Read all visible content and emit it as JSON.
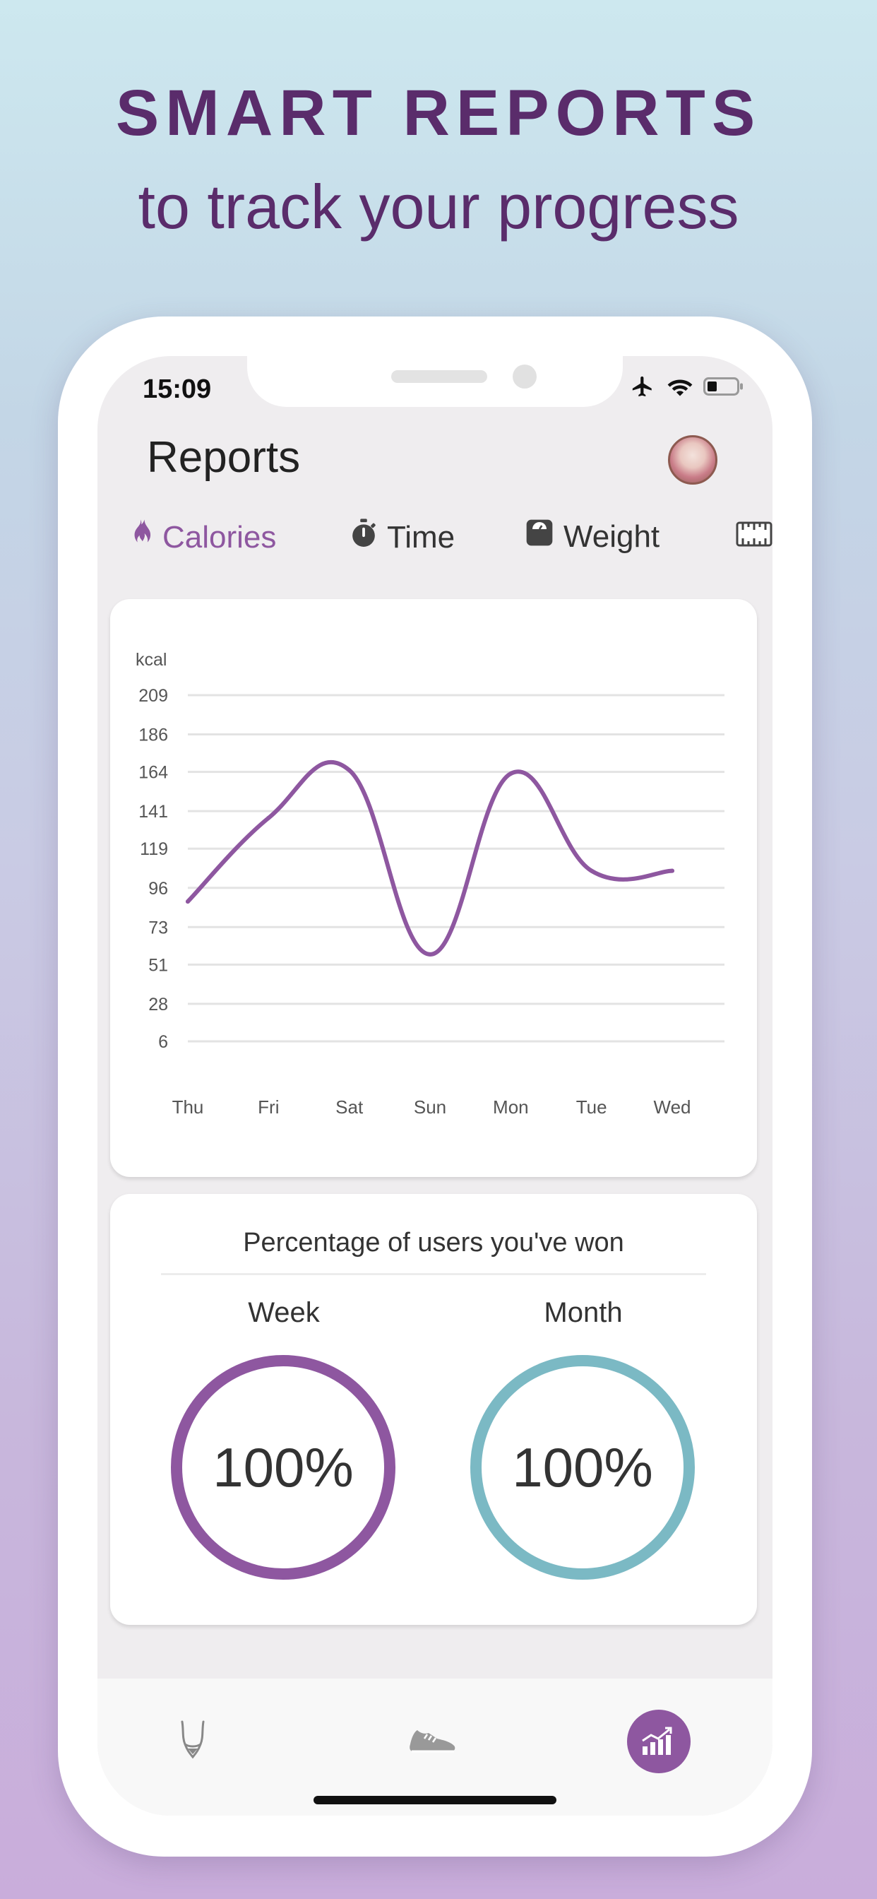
{
  "promo": {
    "headline": "SMART REPORTS",
    "subheadline": "to track your progress"
  },
  "status_bar": {
    "time": "15:09",
    "icons": [
      "airplane-icon",
      "wifi-icon",
      "battery-icon"
    ]
  },
  "header": {
    "title": "Reports"
  },
  "tabs": [
    {
      "label": "Calories",
      "icon": "flame-icon",
      "active": true
    },
    {
      "label": "Time",
      "icon": "stopwatch-icon",
      "active": false
    },
    {
      "label": "Weight",
      "icon": "scale-icon",
      "active": false
    },
    {
      "label": "",
      "icon": "measuring-tape-icon",
      "active": false
    }
  ],
  "chart_data": {
    "type": "line",
    "ylabel": "kcal",
    "yticks": [
      209,
      186,
      164,
      141,
      119,
      96,
      73,
      51,
      28,
      6
    ],
    "ylim": [
      6,
      209
    ],
    "categories": [
      "Thu",
      "Fri",
      "Sat",
      "Sun",
      "Mon",
      "Tue",
      "Wed"
    ],
    "values": [
      88,
      137,
      165,
      57,
      163,
      106,
      106
    ],
    "grid": true,
    "line_color": "#8e57a0"
  },
  "percentage": {
    "title": "Percentage of users you've won",
    "week_label": "Week",
    "week_value": "100%",
    "month_label": "Month",
    "month_value": "100%",
    "week_color": "#8e57a0",
    "month_color": "#7bb9c4"
  },
  "bottom_nav": [
    {
      "icon": "body-icon",
      "active": false
    },
    {
      "icon": "sneaker-icon",
      "active": false
    },
    {
      "icon": "reports-chart-icon",
      "active": true
    }
  ]
}
